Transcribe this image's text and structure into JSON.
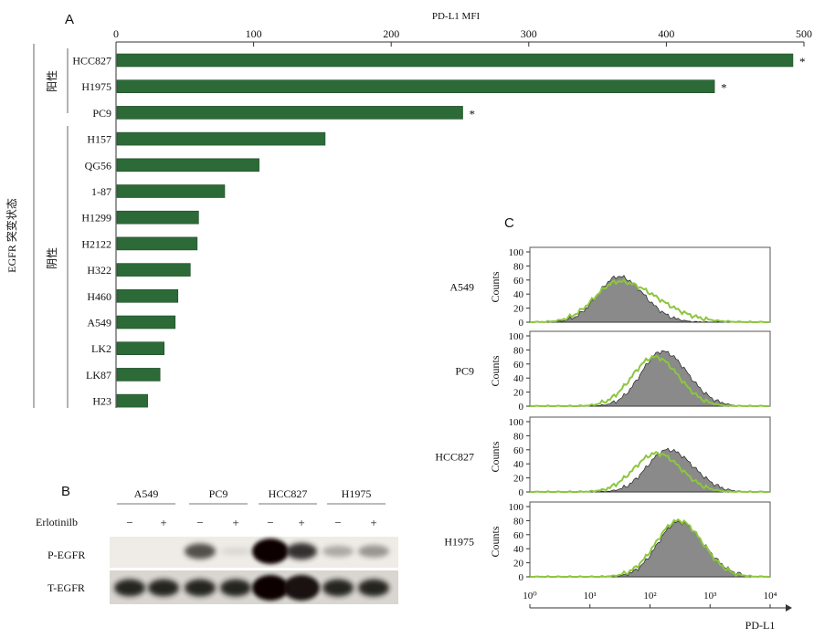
{
  "panels": {
    "A": "A",
    "B": "B",
    "C": "C"
  },
  "chart_data": [
    {
      "type": "bar",
      "orientation": "horizontal",
      "panel": "A",
      "title": "PD-L1 MFI",
      "xlim": [
        0,
        500
      ],
      "xticks": [
        0,
        100,
        200,
        300,
        400,
        500
      ],
      "ylabel": "EGFR 突变状态",
      "groups": [
        {
          "label": "阳性",
          "categories": [
            "HCC827",
            "H1975",
            "PC9"
          ]
        },
        {
          "label": "阴性",
          "categories": [
            "H157",
            "QG56",
            "1-87",
            "H1299",
            "H2122",
            "H322",
            "H460",
            "A549",
            "LK2",
            "LK87",
            "H23"
          ]
        }
      ],
      "categories": [
        "HCC827",
        "H1975",
        "PC9",
        "H157",
        "QG56",
        "1-87",
        "H1299",
        "H2122",
        "H322",
        "H460",
        "A549",
        "LK2",
        "LK87",
        "H23"
      ],
      "values": [
        492,
        435,
        252,
        152,
        104,
        79,
        60,
        59,
        54,
        45,
        43,
        35,
        32,
        23
      ],
      "annotations": [
        "*",
        "*",
        "*",
        "",
        "",
        "",
        "",
        "",
        "",
        "",
        "",
        "",
        "",
        ""
      ],
      "bar_color": "#2c6a38",
      "grid": false
    },
    {
      "type": "histogram-overlay",
      "panel": "C",
      "xlabel": "PD-L1",
      "x_scale": "log",
      "xlim": [
        1,
        10000
      ],
      "xticks": [
        "10⁰",
        "10¹",
        "10²",
        "10³",
        "10⁴"
      ],
      "ylabel": "Counts",
      "ylim": [
        0,
        100
      ],
      "yticks": [
        0,
        20,
        40,
        60,
        80,
        100
      ],
      "colors": {
        "filled": "#8a8a8a",
        "outline": "#8cc63f"
      },
      "plots": [
        {
          "cell_line": "A549",
          "filled_peak_x": 30,
          "filled_peak": 65,
          "outline_peak_x": 30,
          "outline_peak": 58
        },
        {
          "cell_line": "PC9",
          "filled_peak_x": 160,
          "filled_peak": 78,
          "outline_peak_x": 120,
          "outline_peak": 70
        },
        {
          "cell_line": "HCC827",
          "filled_peak_x": 200,
          "filled_peak": 60,
          "outline_peak_x": 130,
          "outline_peak": 55
        },
        {
          "cell_line": "H1975",
          "filled_peak_x": 300,
          "filled_peak": 78,
          "outline_peak_x": 300,
          "outline_peak": 80
        }
      ]
    }
  ],
  "western_blot": {
    "panel": "B",
    "samples": [
      "A549",
      "PC9",
      "HCC827",
      "H1975"
    ],
    "treatment_label": "Erlotinilb",
    "treatments": [
      "−",
      "+",
      "−",
      "+",
      "−",
      "+",
      "−",
      "+"
    ],
    "rows": [
      {
        "label": "P-EGFR",
        "intensity": [
          0.0,
          0.0,
          0.75,
          0.05,
          1.0,
          0.85,
          0.35,
          0.45
        ]
      },
      {
        "label": "T-EGFR",
        "intensity": [
          0.9,
          0.9,
          0.9,
          0.9,
          1.0,
          0.95,
          0.9,
          0.9
        ]
      }
    ]
  }
}
